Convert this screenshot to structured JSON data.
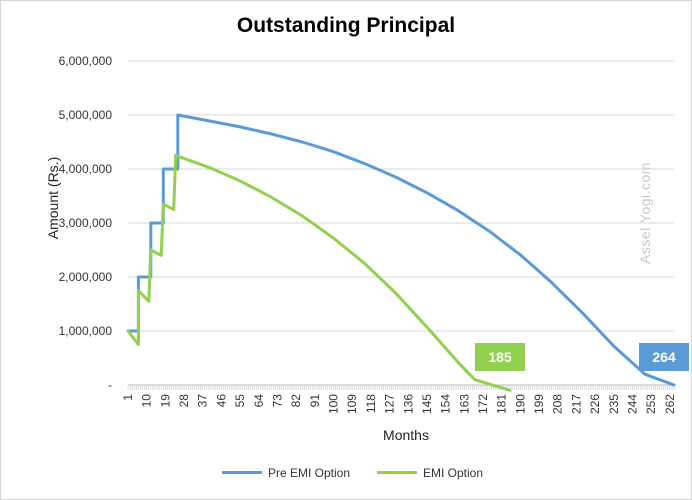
{
  "chart_data": {
    "type": "line",
    "title": "Outstanding Principal",
    "xlabel": "Months",
    "ylabel": "Amount (Rs.)",
    "x_range": [
      1,
      264
    ],
    "ylim": [
      0,
      6000000
    ],
    "y_ticks": [
      "-",
      "1,000,000",
      "2,000,000",
      "3,000,000",
      "4,000,000",
      "5,000,000",
      "6,000,000"
    ],
    "x_ticks": [
      "1",
      "10",
      "19",
      "28",
      "37",
      "46",
      "55",
      "64",
      "73",
      "82",
      "91",
      "100",
      "109",
      "118",
      "127",
      "136",
      "145",
      "154",
      "163",
      "172",
      "181",
      "190",
      "199",
      "208",
      "217",
      "226",
      "235",
      "244",
      "253",
      "262"
    ],
    "grid": "horizontal",
    "legend_position": "bottom",
    "series": [
      {
        "name": "Pre EMI Option",
        "color": "#5b9bd5",
        "points": [
          [
            1,
            1000000
          ],
          [
            6,
            1000000
          ],
          [
            6,
            2000000
          ],
          [
            12,
            2000000
          ],
          [
            12,
            3000000
          ],
          [
            18,
            3000000
          ],
          [
            18,
            4000000
          ],
          [
            25,
            4000000
          ],
          [
            25,
            5000000
          ],
          [
            40,
            4890000
          ],
          [
            55,
            4780000
          ],
          [
            70,
            4650000
          ],
          [
            85,
            4500000
          ],
          [
            100,
            4320000
          ],
          [
            115,
            4100000
          ],
          [
            130,
            3850000
          ],
          [
            145,
            3560000
          ],
          [
            160,
            3230000
          ],
          [
            175,
            2850000
          ],
          [
            190,
            2410000
          ],
          [
            205,
            1900000
          ],
          [
            220,
            1330000
          ],
          [
            235,
            720000
          ],
          [
            250,
            200000
          ],
          [
            264,
            0
          ]
        ]
      },
      {
        "name": "EMI Option",
        "color": "#92d050",
        "points": [
          [
            1,
            1000000
          ],
          [
            6,
            750000
          ],
          [
            6,
            1750000
          ],
          [
            11,
            1550000
          ],
          [
            12,
            2500000
          ],
          [
            17,
            2400000
          ],
          [
            18,
            3350000
          ],
          [
            23,
            3250000
          ],
          [
            24,
            4250000
          ],
          [
            40,
            4030000
          ],
          [
            55,
            3780000
          ],
          [
            70,
            3480000
          ],
          [
            85,
            3130000
          ],
          [
            100,
            2720000
          ],
          [
            115,
            2250000
          ],
          [
            130,
            1700000
          ],
          [
            145,
            1070000
          ],
          [
            160,
            420000
          ],
          [
            168,
            100000
          ],
          [
            185,
            -100000
          ]
        ]
      }
    ],
    "callouts": [
      {
        "label": "185",
        "color": "#92d050",
        "x": 185
      },
      {
        "label": "264",
        "color": "#5b9bd5",
        "x": 264
      }
    ]
  },
  "watermark": "Assel Yogi.com"
}
